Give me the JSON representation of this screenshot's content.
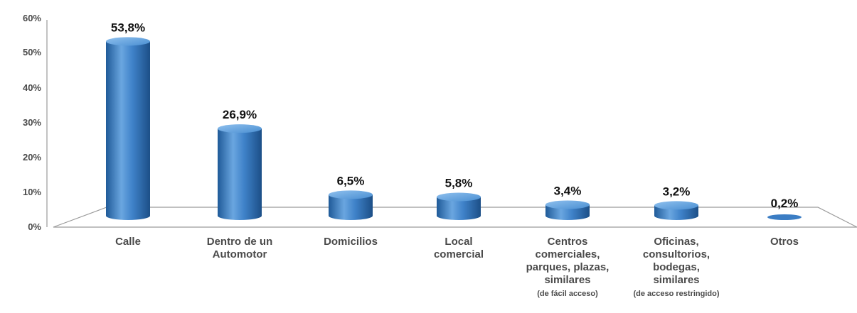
{
  "chart_data": {
    "type": "bar",
    "categories": [
      [
        "Calle"
      ],
      [
        "Dentro de un",
        "Automotor"
      ],
      [
        "Domicilios"
      ],
      [
        "Local",
        "comercial"
      ],
      [
        "Centros",
        "comerciales,",
        "parques, plazas,",
        "similares",
        "(de fácil acceso)"
      ],
      [
        "Oficinas,",
        "consultorios,",
        "bodegas,",
        "similares",
        "(de acceso restringido)"
      ],
      [
        "Otros"
      ]
    ],
    "values": [
      53.8,
      26.9,
      6.5,
      5.8,
      3.4,
      3.2,
      0.2
    ],
    "value_labels": [
      "53,8%",
      "26,9%",
      "6,5%",
      "5,8%",
      "3,4%",
      "3,2%",
      "0,2%"
    ],
    "y_ticks": [
      "0%",
      "10%",
      "20%",
      "30%",
      "40%",
      "50%",
      "60%"
    ],
    "ylim": [
      0,
      60
    ],
    "bar_color": "#3b7dc4",
    "grid": false,
    "legend": false
  }
}
